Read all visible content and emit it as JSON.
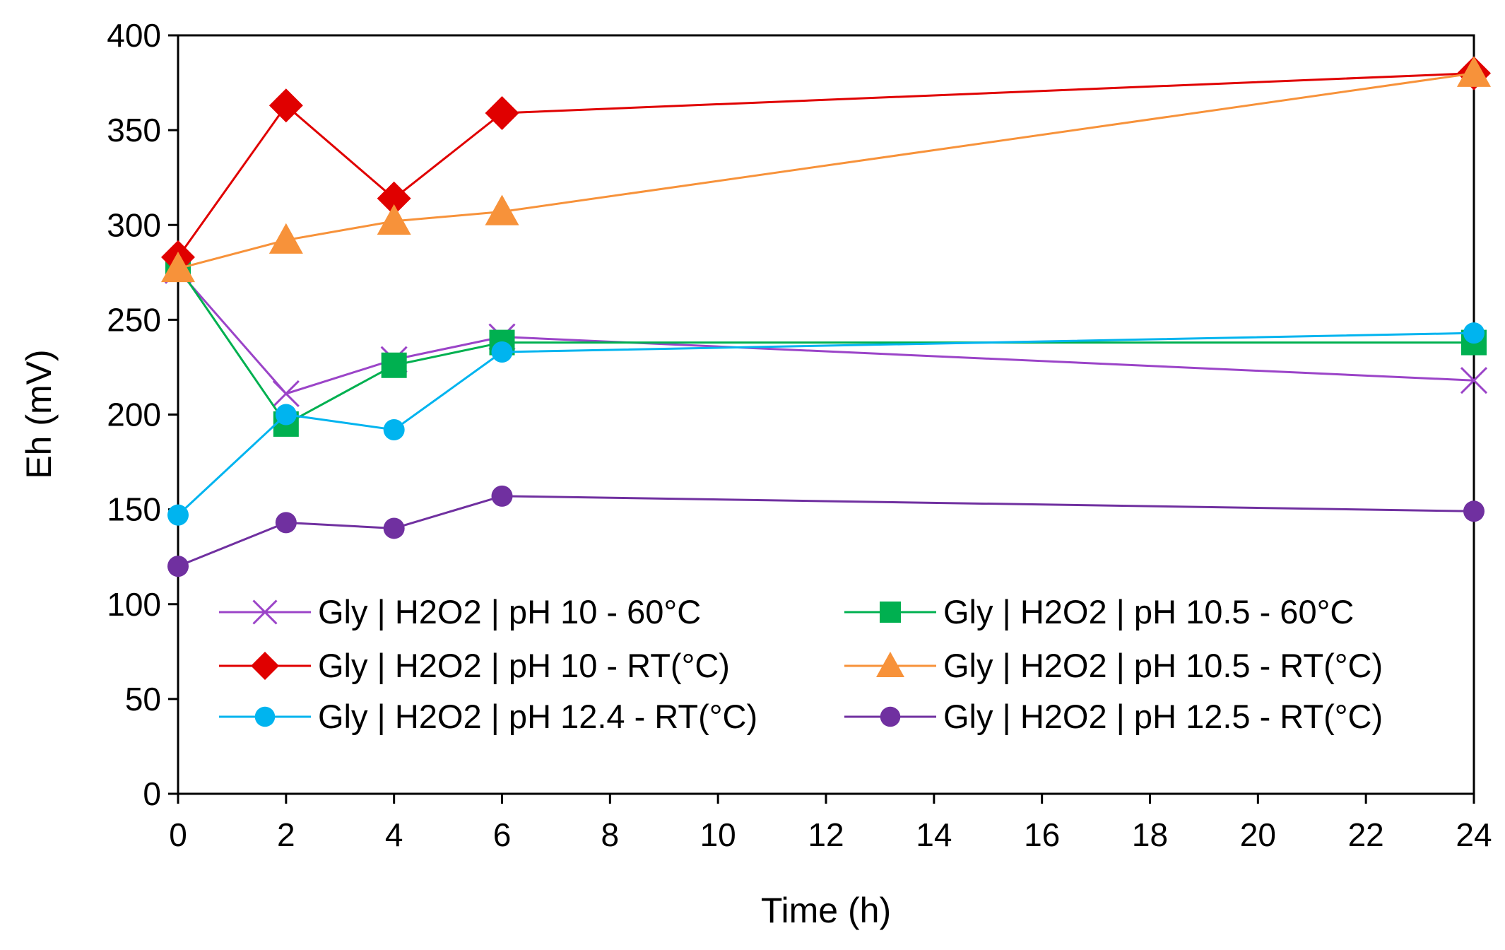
{
  "chart_data": {
    "type": "line",
    "title": "",
    "xlabel": "Time (h)",
    "ylabel": "Eh (mV)",
    "xlim": [
      0,
      24
    ],
    "ylim": [
      0,
      400
    ],
    "x_ticks": [
      0,
      2,
      4,
      6,
      8,
      10,
      12,
      14,
      16,
      18,
      20,
      22,
      24
    ],
    "y_ticks": [
      0,
      50,
      100,
      150,
      200,
      250,
      300,
      350,
      400
    ],
    "grid": false,
    "legend_position": "bottom-inside",
    "series": [
      {
        "name": "Gly | H2O2 | pH 10 - 60°C",
        "color": "#9b44c8",
        "marker": "cross",
        "x": [
          0,
          2,
          4,
          6,
          24
        ],
        "values": [
          276,
          211,
          229,
          241,
          218
        ]
      },
      {
        "name": "Gly | H2O2 | pH 10.5 - 60°C",
        "color": "#00b050",
        "marker": "square",
        "x": [
          0,
          2,
          4,
          6,
          24
        ],
        "values": [
          278,
          195,
          226,
          238,
          238
        ]
      },
      {
        "name": "Gly | H2O2 | pH 10 - RT(°C)",
        "color": "#e00000",
        "marker": "diamond",
        "x": [
          0,
          2,
          4,
          6,
          24
        ],
        "values": [
          283,
          363,
          314,
          359,
          380
        ]
      },
      {
        "name": "Gly | H2O2 | pH 10.5 - RT(°C)",
        "color": "#f7923a",
        "marker": "triangle",
        "x": [
          0,
          2,
          4,
          6,
          24
        ],
        "values": [
          277,
          292,
          302,
          307,
          380
        ]
      },
      {
        "name": "Gly | H2O2 | pH 12.4 - RT(°C)",
        "color": "#00b4ef",
        "marker": "circle",
        "x": [
          0,
          2,
          4,
          6,
          24
        ],
        "values": [
          147,
          200,
          192,
          233,
          243
        ]
      },
      {
        "name": "Gly | H2O2 | pH 12.5 - RT(°C)",
        "color": "#7030a0",
        "marker": "circle",
        "x": [
          0,
          2,
          4,
          6,
          24
        ],
        "values": [
          120,
          143,
          140,
          157,
          149
        ]
      }
    ]
  }
}
